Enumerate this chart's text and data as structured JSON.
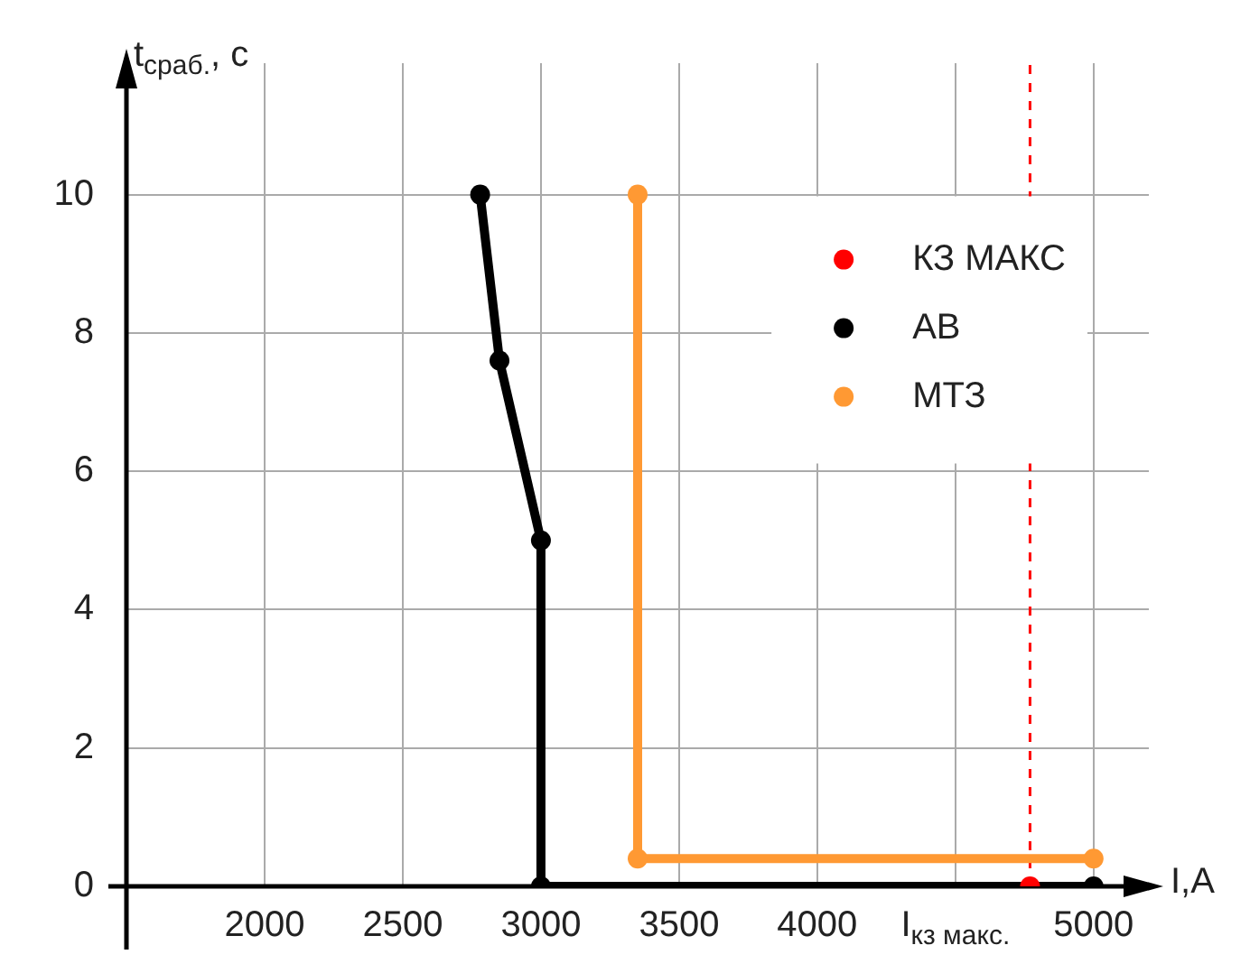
{
  "chart_data": {
    "type": "line",
    "xlabel": "I,A",
    "ylabel": "t$_{сраб.}$, с",
    "xlim": [
      1500,
      5200
    ],
    "ylim": [
      0,
      11.9
    ],
    "xticks": [
      2000,
      2500,
      3000,
      3500,
      4000,
      {
        "value": 4500,
        "label": "I$_{кз макс.}$"
      },
      5000
    ],
    "yticks": [
      0,
      2,
      4,
      6,
      8,
      10
    ],
    "grid": true,
    "legend": "top right",
    "series": [
      {
        "name": "КЗ МАКС",
        "type": "scatter",
        "color": "#ff0000",
        "x": [
          4770
        ],
        "values": [
          0
        ],
        "marker": "circle"
      },
      {
        "name": "АВ",
        "color": "#000000",
        "x": [
          2780,
          2850,
          3000,
          3000,
          5000
        ],
        "values": [
          10,
          7.6,
          5,
          0,
          0
        ],
        "marker": "circle"
      },
      {
        "name": "МТЗ",
        "color": "#ff9933",
        "x": [
          3350,
          3350,
          5000
        ],
        "values": [
          10,
          0.4,
          0.4
        ],
        "marker": "circle"
      }
    ],
    "ref_lines": [
      {
        "axis": "x",
        "value": 4770,
        "color": "#ff0000",
        "line_style": "dashed"
      }
    ]
  }
}
